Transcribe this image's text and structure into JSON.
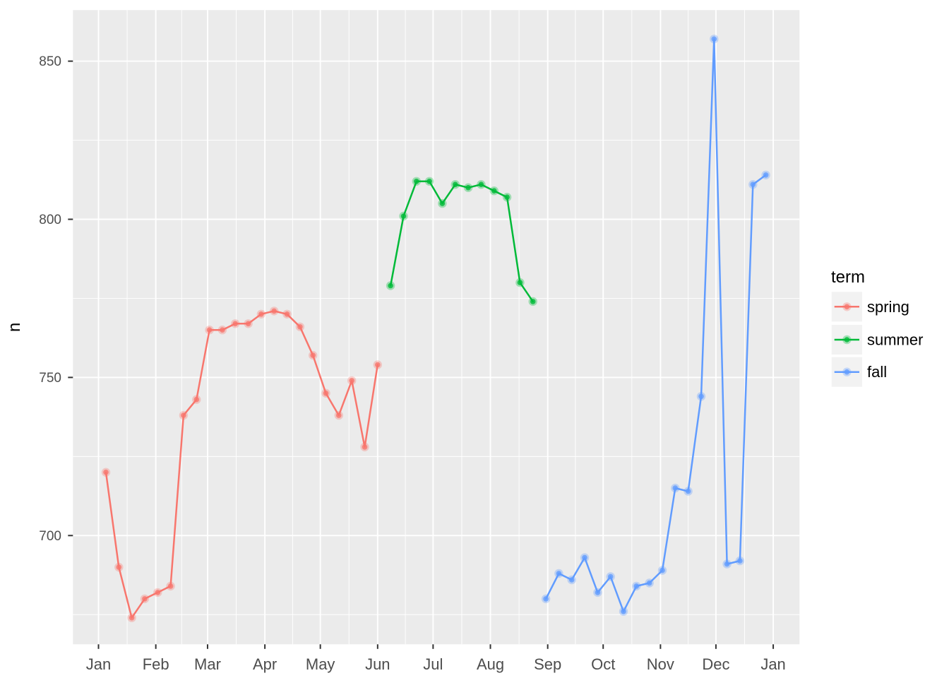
{
  "figure": {
    "page_bg": "#FFFFFF",
    "panel_bg": "#EBEBEB",
    "grid_color": "#FFFFFF",
    "tick_color": "#333333",
    "axis_text_color": "#4D4D4D",
    "axis_title_color": "#000000",
    "legend_key_bg": "#F2F2F2"
  },
  "chart_data": {
    "type": "line",
    "title": "",
    "xlabel": "",
    "ylabel": "n",
    "grid": true,
    "x_axis": {
      "kind": "date",
      "tick_labels": [
        "Jan",
        "Feb",
        "Mar",
        "Apr",
        "May",
        "Jun",
        "Jul",
        "Aug",
        "Sep",
        "Oct",
        "Nov",
        "Dec",
        "Jan"
      ],
      "tick_day_of_year": [
        0,
        31,
        59,
        90,
        120,
        151,
        181,
        212,
        243,
        273,
        304,
        334,
        365
      ]
    },
    "y_axis": {
      "tick_values": [
        700,
        750,
        800,
        850
      ],
      "minor_tick_values": [
        675,
        725,
        775,
        825
      ],
      "range_approx": [
        666,
        866
      ]
    },
    "legend": {
      "title": "term",
      "position": "right",
      "entries": [
        {
          "label": "spring",
          "color": "#F8766D"
        },
        {
          "label": "summer",
          "color": "#00BA38"
        },
        {
          "label": "fall",
          "color": "#619CFF"
        }
      ]
    },
    "series": [
      {
        "name": "spring",
        "color": "#F8766D",
        "points": [
          {
            "date": "Jan 05",
            "day_of_year": 4,
            "n": 720
          },
          {
            "date": "Jan 12",
            "day_of_year": 11,
            "n": 690
          },
          {
            "date": "Jan 19",
            "day_of_year": 18,
            "n": 674
          },
          {
            "date": "Jan 26",
            "day_of_year": 25,
            "n": 680
          },
          {
            "date": "Feb 02",
            "day_of_year": 32,
            "n": 682
          },
          {
            "date": "Feb 09",
            "day_of_year": 39,
            "n": 684
          },
          {
            "date": "Feb 16",
            "day_of_year": 46,
            "n": 738
          },
          {
            "date": "Feb 23",
            "day_of_year": 53,
            "n": 743
          },
          {
            "date": "Mar 02",
            "day_of_year": 60,
            "n": 765
          },
          {
            "date": "Mar 09",
            "day_of_year": 67,
            "n": 765
          },
          {
            "date": "Mar 16",
            "day_of_year": 74,
            "n": 767
          },
          {
            "date": "Mar 23",
            "day_of_year": 81,
            "n": 767
          },
          {
            "date": "Mar 30",
            "day_of_year": 88,
            "n": 770
          },
          {
            "date": "Apr 06",
            "day_of_year": 95,
            "n": 771
          },
          {
            "date": "Apr 13",
            "day_of_year": 102,
            "n": 770
          },
          {
            "date": "Apr 20",
            "day_of_year": 109,
            "n": 766
          },
          {
            "date": "Apr 27",
            "day_of_year": 116,
            "n": 757
          },
          {
            "date": "May 04",
            "day_of_year": 123,
            "n": 745
          },
          {
            "date": "May 11",
            "day_of_year": 130,
            "n": 738
          },
          {
            "date": "May 18",
            "day_of_year": 137,
            "n": 749
          },
          {
            "date": "May 25",
            "day_of_year": 144,
            "n": 728
          },
          {
            "date": "Jun 01",
            "day_of_year": 151,
            "n": 754
          }
        ]
      },
      {
        "name": "summer",
        "color": "#00BA38",
        "points": [
          {
            "date": "Jun 08",
            "day_of_year": 158,
            "n": 779
          },
          {
            "date": "Jun 15",
            "day_of_year": 165,
            "n": 801
          },
          {
            "date": "Jun 22",
            "day_of_year": 172,
            "n": 812
          },
          {
            "date": "Jun 29",
            "day_of_year": 179,
            "n": 812
          },
          {
            "date": "Jul 06",
            "day_of_year": 186,
            "n": 805
          },
          {
            "date": "Jul 13",
            "day_of_year": 193,
            "n": 811
          },
          {
            "date": "Jul 20",
            "day_of_year": 200,
            "n": 810
          },
          {
            "date": "Jul 27",
            "day_of_year": 207,
            "n": 811
          },
          {
            "date": "Aug 03",
            "day_of_year": 214,
            "n": 809
          },
          {
            "date": "Aug 10",
            "day_of_year": 221,
            "n": 807
          },
          {
            "date": "Aug 17",
            "day_of_year": 228,
            "n": 780
          },
          {
            "date": "Aug 24",
            "day_of_year": 235,
            "n": 774
          }
        ]
      },
      {
        "name": "fall",
        "color": "#619CFF",
        "points": [
          {
            "date": "Aug 31",
            "day_of_year": 242,
            "n": 680
          },
          {
            "date": "Sep 07",
            "day_of_year": 249,
            "n": 688
          },
          {
            "date": "Sep 14",
            "day_of_year": 256,
            "n": 686
          },
          {
            "date": "Sep 21",
            "day_of_year": 263,
            "n": 693
          },
          {
            "date": "Sep 28",
            "day_of_year": 270,
            "n": 682
          },
          {
            "date": "Oct 05",
            "day_of_year": 277,
            "n": 687
          },
          {
            "date": "Oct 12",
            "day_of_year": 284,
            "n": 676
          },
          {
            "date": "Oct 19",
            "day_of_year": 291,
            "n": 684
          },
          {
            "date": "Oct 26",
            "day_of_year": 298,
            "n": 685
          },
          {
            "date": "Nov 02",
            "day_of_year": 305,
            "n": 689
          },
          {
            "date": "Nov 09",
            "day_of_year": 312,
            "n": 715
          },
          {
            "date": "Nov 16",
            "day_of_year": 319,
            "n": 714
          },
          {
            "date": "Nov 23",
            "day_of_year": 326,
            "n": 744
          },
          {
            "date": "Nov 30",
            "day_of_year": 333,
            "n": 857
          },
          {
            "date": "Dec 07",
            "day_of_year": 340,
            "n": 691
          },
          {
            "date": "Dec 14",
            "day_of_year": 347,
            "n": 692
          },
          {
            "date": "Dec 21",
            "day_of_year": 354,
            "n": 811
          },
          {
            "date": "Dec 28",
            "day_of_year": 361,
            "n": 814
          }
        ]
      }
    ]
  }
}
